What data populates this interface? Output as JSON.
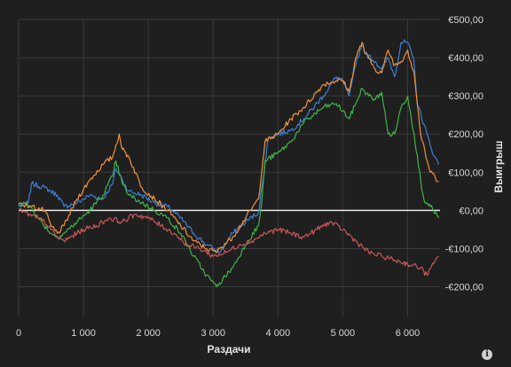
{
  "chart_data": {
    "type": "line",
    "xlabel": "Раздачи",
    "ylabel": "Выигрыш",
    "xlim": [
      0,
      6500
    ],
    "ylim": [
      -280,
      500
    ],
    "x_ticks": [
      0,
      1000,
      2000,
      3000,
      4000,
      5000,
      6000
    ],
    "x_tick_labels": [
      "0",
      "1 000",
      "2 000",
      "3 000",
      "4 000",
      "5 000",
      "6 000"
    ],
    "y_ticks": [
      500,
      400,
      300,
      200,
      100,
      0,
      -100,
      -200
    ],
    "y_tick_labels": [
      "€500,00",
      "€400,00",
      "€300,00",
      "€200,00",
      "€100,00",
      "€0,00",
      "-€100,00",
      "-€200,00"
    ],
    "grid": true,
    "colors": {
      "background": "#1f1f1f",
      "grid": "#3a3a3a",
      "zero_line": "#e8e8e8"
    },
    "series": [
      {
        "color": "#3d7fd8",
        "x": [
          0,
          150,
          200,
          400,
          600,
          700,
          900,
          1100,
          1300,
          1450,
          1500,
          1600,
          1700,
          1900,
          2100,
          2300,
          2500,
          2700,
          2900,
          3050,
          3100,
          3300,
          3500,
          3700,
          3800,
          3850,
          4000,
          4200,
          4400,
          4700,
          4900,
          5000,
          5100,
          5200,
          5300,
          5350,
          5500,
          5600,
          5700,
          5800,
          5900,
          6000,
          6100,
          6150,
          6300,
          6350,
          6420,
          6480
        ],
        "y": [
          10,
          20,
          70,
          60,
          40,
          10,
          20,
          40,
          30,
          70,
          110,
          80,
          50,
          40,
          20,
          10,
          -20,
          -60,
          -90,
          -105,
          -110,
          -60,
          -30,
          -5,
          120,
          190,
          200,
          210,
          240,
          300,
          350,
          340,
          300,
          380,
          440,
          410,
          390,
          370,
          400,
          350,
          440,
          440,
          390,
          280,
          200,
          170,
          140,
          120
        ]
      },
      {
        "color": "#f0923a",
        "x": [
          0,
          200,
          400,
          500,
          600,
          700,
          900,
          1100,
          1300,
          1450,
          1550,
          1600,
          1700,
          1900,
          2100,
          2300,
          2500,
          2700,
          2900,
          3050,
          3100,
          3300,
          3500,
          3700,
          3800,
          4000,
          4200,
          4400,
          4700,
          4900,
          5000,
          5100,
          5200,
          5300,
          5350,
          5500,
          5600,
          5700,
          5800,
          5900,
          6000,
          6100,
          6200,
          6300,
          6350,
          6420,
          6480
        ],
        "y": [
          20,
          10,
          0,
          -40,
          -60,
          -40,
          30,
          80,
          120,
          140,
          200,
          160,
          140,
          60,
          30,
          0,
          -40,
          -80,
          -100,
          -110,
          -100,
          -70,
          -20,
          30,
          180,
          200,
          240,
          270,
          330,
          340,
          340,
          310,
          400,
          440,
          410,
          370,
          360,
          420,
          380,
          390,
          420,
          360,
          200,
          130,
          100,
          90,
          75
        ]
      },
      {
        "color": "#3fb548",
        "x": [
          0,
          200,
          300,
          500,
          600,
          700,
          900,
          1100,
          1300,
          1450,
          1500,
          1600,
          1700,
          1900,
          2100,
          2300,
          2500,
          2700,
          2900,
          3050,
          3100,
          3300,
          3500,
          3700,
          3750,
          3800,
          4000,
          4200,
          4400,
          4700,
          4900,
          5000,
          5100,
          5200,
          5300,
          5400,
          5500,
          5600,
          5700,
          5800,
          5900,
          6000,
          6100,
          6200,
          6250,
          6300,
          6350,
          6400,
          6450,
          6480
        ],
        "y": [
          20,
          10,
          -20,
          -60,
          -70,
          -60,
          -30,
          0,
          40,
          90,
          130,
          70,
          40,
          20,
          0,
          -20,
          -60,
          -120,
          -170,
          -200,
          -190,
          -150,
          -90,
          -40,
          20,
          130,
          150,
          180,
          230,
          270,
          280,
          260,
          240,
          280,
          320,
          300,
          290,
          310,
          200,
          200,
          270,
          300,
          200,
          80,
          30,
          20,
          10,
          0,
          -10,
          -20
        ]
      },
      {
        "color": "#c95858",
        "x": [
          0,
          100,
          200,
          300,
          400,
          500,
          600,
          700,
          800,
          900,
          1000,
          1200,
          1400,
          1600,
          1800,
          2000,
          2200,
          2400,
          2600,
          2800,
          3000,
          3200,
          3400,
          3600,
          3800,
          4000,
          4200,
          4400,
          4600,
          4800,
          5000,
          5200,
          5400,
          5600,
          5800,
          6000,
          6200,
          6300,
          6400,
          6480
        ],
        "y": [
          0,
          -5,
          -15,
          -20,
          -30,
          -50,
          -70,
          -80,
          -70,
          -60,
          -50,
          -40,
          -20,
          -30,
          -10,
          -20,
          -40,
          -60,
          -90,
          -100,
          -120,
          -110,
          -90,
          -80,
          -60,
          -50,
          -60,
          -70,
          -50,
          -30,
          -50,
          -80,
          -110,
          -120,
          -130,
          -140,
          -150,
          -170,
          -140,
          -120
        ]
      }
    ]
  },
  "icons": {
    "info": "info-icon"
  },
  "info_glyph": "i"
}
